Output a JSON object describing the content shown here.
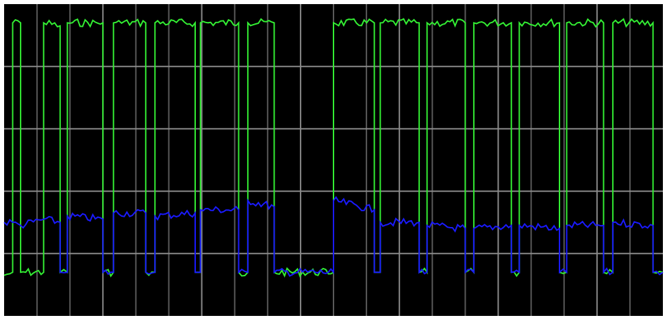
{
  "colors": {
    "background": "#000000",
    "frame": "#ffffff",
    "grid_major": "#8a8a8a",
    "grid_minor": "#5a5a5a",
    "series_green": "#33ee33",
    "series_blue": "#1a1aff"
  },
  "chart_data": {
    "type": "line",
    "title": "",
    "xlabel": "",
    "ylabel": "",
    "grid": true,
    "legend": "none",
    "axis_labels_shown": false,
    "xlim": [
      0,
      1
    ],
    "ylim": [
      0,
      1
    ],
    "series": [
      {
        "color": "#33ee33",
        "segments": [
          [
            0.0,
            0.87
          ],
          [
            0.013,
            0.86
          ],
          [
            0.013,
            0.06
          ],
          [
            0.025,
            0.06
          ],
          [
            0.025,
            0.86
          ],
          [
            0.06,
            0.86
          ],
          [
            0.06,
            0.06
          ],
          [
            0.085,
            0.07
          ],
          [
            0.085,
            0.86
          ],
          [
            0.096,
            0.86
          ],
          [
            0.096,
            0.06
          ],
          [
            0.15,
            0.06
          ],
          [
            0.15,
            0.86
          ],
          [
            0.166,
            0.86
          ],
          [
            0.166,
            0.06
          ],
          [
            0.215,
            0.06
          ],
          [
            0.215,
            0.86
          ],
          [
            0.229,
            0.86
          ],
          [
            0.229,
            0.06
          ],
          [
            0.29,
            0.06
          ],
          [
            0.29,
            0.86
          ],
          [
            0.298,
            0.86
          ],
          [
            0.298,
            0.06
          ],
          [
            0.356,
            0.06
          ],
          [
            0.356,
            0.86
          ],
          [
            0.37,
            0.86
          ],
          [
            0.37,
            0.06
          ],
          [
            0.41,
            0.06
          ],
          [
            0.41,
            0.86
          ],
          [
            0.5,
            0.86
          ],
          [
            0.5,
            0.06
          ],
          [
            0.562,
            0.06
          ],
          [
            0.562,
            0.86
          ],
          [
            0.571,
            0.86
          ],
          [
            0.571,
            0.06
          ],
          [
            0.63,
            0.06
          ],
          [
            0.63,
            0.86
          ],
          [
            0.642,
            0.86
          ],
          [
            0.642,
            0.06
          ],
          [
            0.7,
            0.06
          ],
          [
            0.7,
            0.86
          ],
          [
            0.713,
            0.86
          ],
          [
            0.713,
            0.06
          ],
          [
            0.77,
            0.06
          ],
          [
            0.77,
            0.86
          ],
          [
            0.782,
            0.86
          ],
          [
            0.782,
            0.06
          ],
          [
            0.843,
            0.06
          ],
          [
            0.843,
            0.86
          ],
          [
            0.854,
            0.86
          ],
          [
            0.854,
            0.06
          ],
          [
            0.91,
            0.06
          ],
          [
            0.91,
            0.86
          ],
          [
            0.924,
            0.86
          ],
          [
            0.924,
            0.06
          ],
          [
            0.985,
            0.06
          ],
          [
            0.985,
            0.86
          ],
          [
            1.0,
            0.86
          ]
        ]
      },
      {
        "color": "#1a1aff",
        "segments": [
          [
            0.0,
            0.7
          ],
          [
            0.013,
            0.7
          ],
          [
            0.025,
            0.71
          ],
          [
            0.06,
            0.69
          ],
          [
            0.085,
            0.7
          ],
          [
            0.085,
            0.86
          ],
          [
            0.096,
            0.86
          ],
          [
            0.096,
            0.68
          ],
          [
            0.15,
            0.69
          ],
          [
            0.15,
            0.86
          ],
          [
            0.166,
            0.86
          ],
          [
            0.166,
            0.67
          ],
          [
            0.215,
            0.67
          ],
          [
            0.215,
            0.86
          ],
          [
            0.229,
            0.86
          ],
          [
            0.229,
            0.68
          ],
          [
            0.29,
            0.67
          ],
          [
            0.29,
            0.86
          ],
          [
            0.298,
            0.86
          ],
          [
            0.298,
            0.66
          ],
          [
            0.356,
            0.66
          ],
          [
            0.356,
            0.86
          ],
          [
            0.37,
            0.86
          ],
          [
            0.37,
            0.63
          ],
          [
            0.41,
            0.65
          ],
          [
            0.41,
            0.86
          ],
          [
            0.5,
            0.86
          ],
          [
            0.5,
            0.63
          ],
          [
            0.562,
            0.66
          ],
          [
            0.562,
            0.86
          ],
          [
            0.571,
            0.86
          ],
          [
            0.571,
            0.7
          ],
          [
            0.63,
            0.7
          ],
          [
            0.63,
            0.86
          ],
          [
            0.642,
            0.86
          ],
          [
            0.642,
            0.71
          ],
          [
            0.7,
            0.72
          ],
          [
            0.7,
            0.86
          ],
          [
            0.713,
            0.86
          ],
          [
            0.713,
            0.72
          ],
          [
            0.77,
            0.71
          ],
          [
            0.77,
            0.86
          ],
          [
            0.782,
            0.86
          ],
          [
            0.782,
            0.71
          ],
          [
            0.843,
            0.72
          ],
          [
            0.843,
            0.86
          ],
          [
            0.854,
            0.86
          ],
          [
            0.854,
            0.71
          ],
          [
            0.91,
            0.71
          ],
          [
            0.91,
            0.86
          ],
          [
            0.924,
            0.86
          ],
          [
            0.924,
            0.7
          ],
          [
            0.985,
            0.71
          ],
          [
            0.985,
            0.86
          ],
          [
            1.0,
            0.86
          ]
        ]
      }
    ]
  }
}
